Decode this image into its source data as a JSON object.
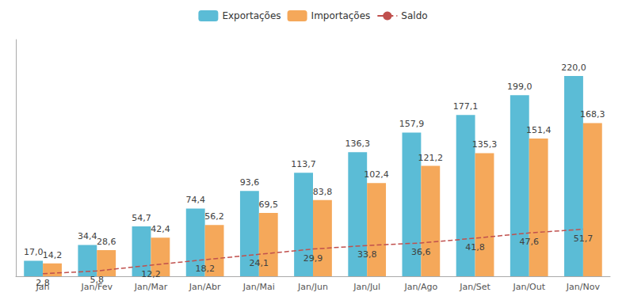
{
  "chart_data": {
    "type": "bar",
    "categories": [
      "Jan",
      "Jan/Fev",
      "Jan/Mar",
      "Jan/Abr",
      "Jan/Mai",
      "Jan/Jun",
      "Jan/Jul",
      "Jan/Ago",
      "Jan/Set",
      "Jan/Out",
      "Jan/Nov"
    ],
    "series": [
      {
        "name": "Exportações",
        "type": "bar",
        "color": "#5BBCD6",
        "values": [
          17.0,
          34.4,
          54.7,
          74.4,
          93.6,
          113.7,
          136.3,
          157.9,
          177.1,
          199.0,
          220.0
        ],
        "value_labels": [
          "17,0",
          "34,4",
          "54,7",
          "74,4",
          "93,6",
          "113,7",
          "136,3",
          "157,9",
          "177,1",
          "199,0",
          "220,0"
        ]
      },
      {
        "name": "Importações",
        "type": "bar",
        "color": "#F5A85A",
        "values": [
          14.2,
          28.6,
          42.4,
          56.2,
          69.5,
          83.8,
          102.4,
          121.2,
          135.3,
          151.4,
          168.3
        ],
        "value_labels": [
          "14,2",
          "28,6",
          "42,4",
          "56,2",
          "69,5",
          "83,8",
          "102,4",
          "121,2",
          "135,3",
          "151,4",
          "168,3"
        ]
      },
      {
        "name": "Saldo",
        "type": "line",
        "color": "#C0504D",
        "line_style": "dashed",
        "values": [
          2.8,
          5.8,
          12.2,
          18.2,
          24.1,
          29.9,
          33.8,
          36.6,
          41.8,
          47.6,
          51.7
        ],
        "value_labels": [
          "2,8",
          "5,8",
          "12,2",
          "18,2",
          "24,1",
          "29,9",
          "33,8",
          "36,6",
          "41,8",
          "47,6",
          "51,7"
        ]
      }
    ],
    "ylim": [
      0,
      260
    ],
    "tick_labels": "x",
    "grid": false,
    "legend": "top",
    "data_labels": true
  }
}
